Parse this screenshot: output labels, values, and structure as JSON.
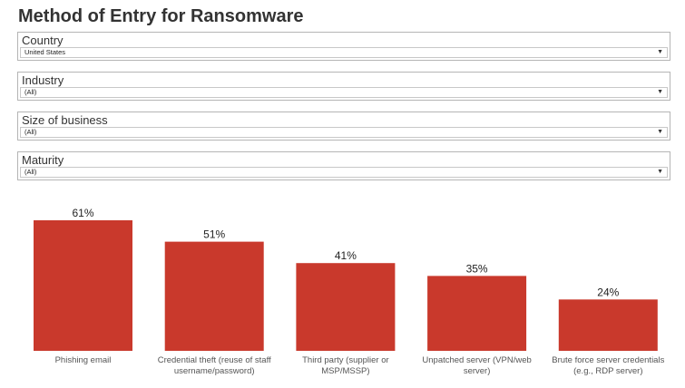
{
  "title": "Method of Entry for Ransomware",
  "filters": [
    {
      "label": "Country",
      "value": "United States"
    },
    {
      "label": "Industry",
      "value": "(All)"
    },
    {
      "label": "Size of business",
      "value": "(All)"
    },
    {
      "label": "Maturity",
      "value": "(All)"
    }
  ],
  "colors": {
    "bar": "#c9392c"
  },
  "chart_data": {
    "type": "bar",
    "categories": [
      [
        "Phishing email"
      ],
      [
        "Credential theft (reuse of staff",
        "username/password)"
      ],
      [
        "Third party (supplier or",
        "MSP/MSSP)"
      ],
      [
        "Unpatched server (VPN/web",
        "server)"
      ],
      [
        "Brute force server credentials",
        "(e.g., RDP server)"
      ]
    ],
    "values": [
      61,
      51,
      41,
      35,
      24
    ],
    "value_labels": [
      "61%",
      "51%",
      "41%",
      "35%",
      "24%"
    ],
    "ylim": [
      0,
      65
    ],
    "grid": false,
    "legend": "none"
  }
}
